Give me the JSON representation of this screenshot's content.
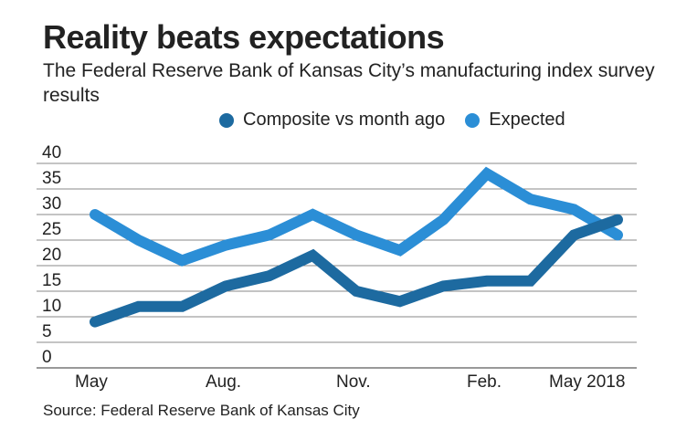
{
  "title": "Reality beats expectations",
  "subtitle": "The Federal Reserve Bank of Kansas City’s manufacturing index survey results",
  "source": "Source: Federal Reserve Bank of Kansas City",
  "chart_data": {
    "type": "line",
    "x": [
      "May 2017",
      "Jun 2017",
      "Jul 2017",
      "Aug 2017",
      "Sep 2017",
      "Oct 2017",
      "Nov 2017",
      "Dec 2017",
      "Jan 2018",
      "Feb 2018",
      "Mar 2018",
      "Apr 2018",
      "May 2018"
    ],
    "xtick_labels": [
      "May",
      "Aug.",
      "Nov.",
      "Feb.",
      "May 2018"
    ],
    "xtick_index": [
      0,
      3,
      6,
      9,
      12
    ],
    "yticks": [
      0,
      5,
      10,
      15,
      20,
      25,
      30,
      35,
      40
    ],
    "ylim": [
      0,
      40
    ],
    "grid": true,
    "legend_placement": "top",
    "series": [
      {
        "name": "Composite vs month ago",
        "color": "#1d6aa0",
        "values": [
          9,
          12,
          12,
          16,
          18,
          22,
          15,
          13,
          16,
          17,
          17,
          26,
          29
        ]
      },
      {
        "name": "Expected",
        "color": "#2b8ed6",
        "values": [
          30,
          25,
          21,
          24,
          26,
          30,
          26,
          23,
          29,
          38,
          33,
          31,
          26
        ]
      }
    ]
  }
}
